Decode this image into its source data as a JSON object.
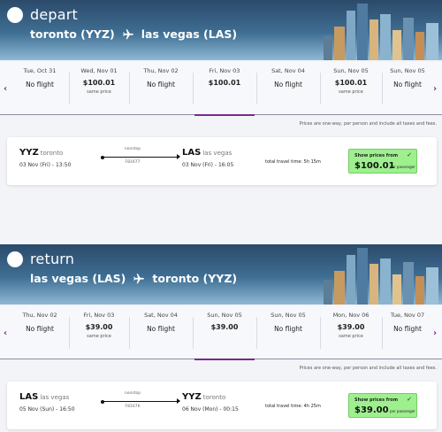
{
  "depart": {
    "label": "depart",
    "origin": "toronto (YYZ)",
    "destination": "las vegas (LAS)",
    "dates": [
      {
        "date": "Tue, Oct 31",
        "price": "",
        "status": "No flight",
        "note": ""
      },
      {
        "date": "Wed, Nov 01",
        "price": "$100.01",
        "status": "",
        "note": "same price"
      },
      {
        "date": "Thu, Nov 02",
        "price": "",
        "status": "No flight",
        "note": ""
      },
      {
        "date": "Fri, Nov 03",
        "price": "$100.01",
        "status": "",
        "note": ""
      },
      {
        "date": "Sat, Nov 04",
        "price": "",
        "status": "No flight",
        "note": ""
      },
      {
        "date": "Sun, Nov 05",
        "price": "$100.01",
        "status": "",
        "note": "same price"
      },
      {
        "date": "Sun, Nov 05",
        "price": "",
        "status": "No flight",
        "note": ""
      }
    ],
    "prices_note": "Prices are one-way, per person and include all taxes and fees.",
    "flight": {
      "from_code": "YYZ",
      "from_city": "toronto",
      "depart_time": "03 Nov (Fri) - 13:50",
      "stops": "nonstop",
      "flight_no": "F81677",
      "to_code": "LAS",
      "to_city": "las vegas",
      "arrive_time": "03 Nov (Fri) - 16:05",
      "total_time": "total travel time: 5h 15m",
      "show_prices": "Show prices from",
      "price": "$100.01",
      "per_passenger": "per passenger"
    }
  },
  "return": {
    "label": "return",
    "origin": "las vegas (LAS)",
    "destination": "toronto (YYZ)",
    "dates": [
      {
        "date": "Thu, Nov 02",
        "price": "",
        "status": "No flight",
        "note": ""
      },
      {
        "date": "Fri, Nov 03",
        "price": "$39.00",
        "status": "",
        "note": "same price"
      },
      {
        "date": "Sat, Nov 04",
        "price": "",
        "status": "No flight",
        "note": ""
      },
      {
        "date": "Sun, Nov 05",
        "price": "$39.00",
        "status": "",
        "note": ""
      },
      {
        "date": "Sun, Nov 05",
        "price": "",
        "status": "No flight",
        "note": ""
      },
      {
        "date": "Mon, Nov 06",
        "price": "$39.00",
        "status": "",
        "note": "same price"
      },
      {
        "date": "Tue, Nov 07",
        "price": "",
        "status": "No flight",
        "note": ""
      }
    ],
    "prices_note": "Prices are one-way, per person and include all taxes and fees.",
    "flight": {
      "from_code": "LAS",
      "from_city": "las vegas",
      "depart_time": "05 Nov (Sun) - 16:50",
      "stops": "nonstop",
      "flight_no": "F81676",
      "to_code": "YYZ",
      "to_city": "toronto",
      "arrive_time": "06 Nov (Mon) - 00:15",
      "total_time": "total travel time: 4h 25m",
      "show_prices": "Show prices from",
      "price": "$39.00",
      "per_passenger": "per passenger"
    }
  },
  "icons": {
    "plane": "airplane-icon",
    "prev": "chevron-left-icon",
    "next": "chevron-right-icon",
    "check": "check-icon"
  },
  "colors": {
    "accent": "#7a2a8c",
    "price_box": "#9ef08e",
    "hero": "#3f6f94"
  }
}
